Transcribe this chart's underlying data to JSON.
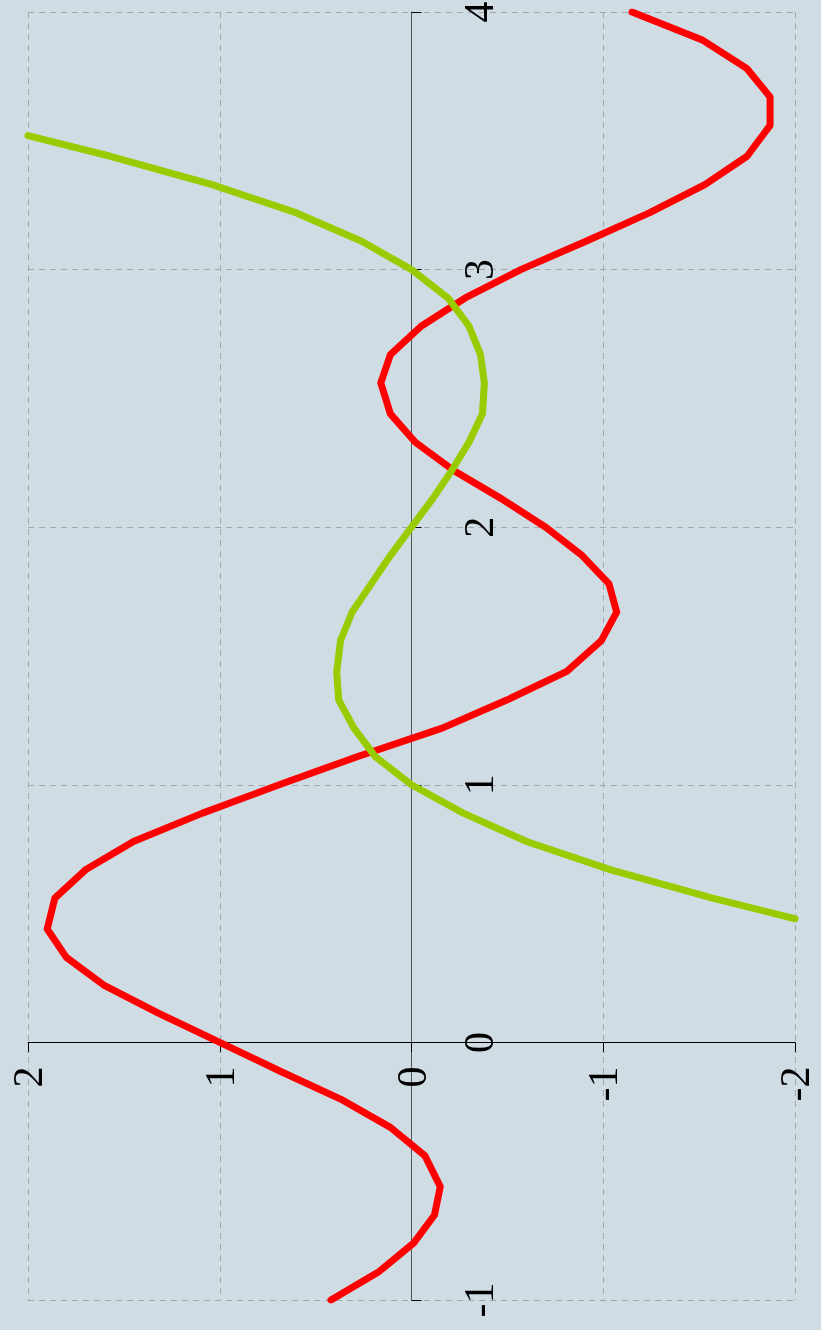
{
  "chart_data": {
    "type": "line",
    "xlim": [
      2,
      -2
    ],
    "xticks": [
      2,
      1,
      0,
      -1,
      -2
    ],
    "ylim": [
      -1,
      4
    ],
    "yticks": [
      -1,
      0,
      1,
      2,
      3,
      4
    ],
    "grid": true,
    "marker": "none",
    "line_style": "solid",
    "series": [
      {
        "color": "#ff0000",
        "x": [
          0.42,
          0.17,
          -0.01,
          -0.12,
          -0.15,
          -0.07,
          0.11,
          0.37,
          0.69,
          1,
          1.31,
          1.6,
          1.8,
          1.9,
          1.86,
          1.7,
          1.45,
          1.09,
          0.69,
          0.28,
          -0.16,
          -0.5,
          -0.81,
          -0.99,
          -1.07,
          -1.03,
          -0.89,
          -0.7,
          -0.47,
          -0.22,
          -0.02,
          0.11,
          0.16,
          0.11,
          -0.05,
          -0.28,
          -0.57,
          -0.91,
          -1.24,
          -1.53,
          -1.75,
          -1.87,
          -1.87,
          -1.75,
          -1.52,
          -1.15
        ],
        "values": [
          -1,
          -0.89,
          -0.78,
          -0.67,
          -0.56,
          -0.44,
          -0.33,
          -0.22,
          -0.11,
          0,
          0.11,
          0.22,
          0.33,
          0.44,
          0.56,
          0.67,
          0.78,
          0.89,
          1,
          1.11,
          1.22,
          1.33,
          1.44,
          1.56,
          1.67,
          1.78,
          1.89,
          2,
          2.11,
          2.22,
          2.33,
          2.44,
          2.56,
          2.67,
          2.78,
          2.89,
          3,
          3.11,
          3.22,
          3.33,
          3.44,
          3.56,
          3.67,
          3.78,
          3.89,
          4
        ]
      },
      {
        "color": "#99cc00",
        "x": [
          -2,
          -1.57,
          -1.04,
          -0.6,
          -0.27,
          0,
          0.19,
          0.3,
          0.38,
          0.39,
          0.37,
          0.31,
          0.21,
          0.11,
          0,
          -0.11,
          -0.21,
          -0.3,
          -0.37,
          -0.38,
          -0.36,
          -0.3,
          -0.19,
          0,
          0.26,
          0.6,
          1.04,
          1.57,
          2
        ],
        "values": [
          0.48,
          0.56,
          0.67,
          0.78,
          0.89,
          1,
          1.11,
          1.22,
          1.33,
          1.44,
          1.56,
          1.67,
          1.78,
          1.89,
          2,
          2.11,
          2.22,
          2.33,
          2.44,
          2.56,
          2.67,
          2.78,
          2.89,
          3,
          3.11,
          3.22,
          3.33,
          3.44,
          3.52
        ]
      }
    ]
  }
}
